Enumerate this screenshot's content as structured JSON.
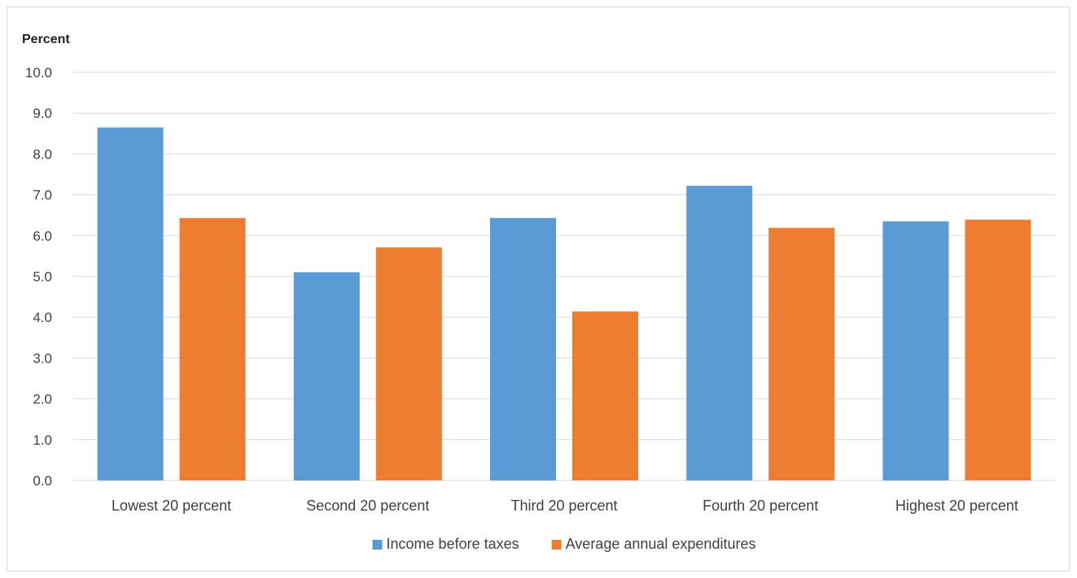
{
  "chart_data": {
    "type": "bar",
    "title": "",
    "ylabel": "Percent",
    "xlabel": "",
    "ylim": [
      0,
      10
    ],
    "ytick_step": 1,
    "ytick_labels": [
      "0.0",
      "1.0",
      "2.0",
      "3.0",
      "4.0",
      "5.0",
      "6.0",
      "7.0",
      "8.0",
      "9.0",
      "10.0"
    ],
    "grid": true,
    "legend_position": "bottom",
    "categories": [
      "Lowest 20 percent",
      "Second 20 percent",
      "Third 20 percent",
      "Fourth 20 percent",
      "Highest 20 percent"
    ],
    "series": [
      {
        "name": "Income before taxes",
        "color": "#5b9bd5",
        "values": [
          8.65,
          5.1,
          6.43,
          7.22,
          6.35
        ]
      },
      {
        "name": "Average annual expenditures",
        "color": "#ed7d31",
        "values": [
          6.43,
          5.71,
          4.14,
          6.19,
          6.39
        ]
      }
    ]
  }
}
